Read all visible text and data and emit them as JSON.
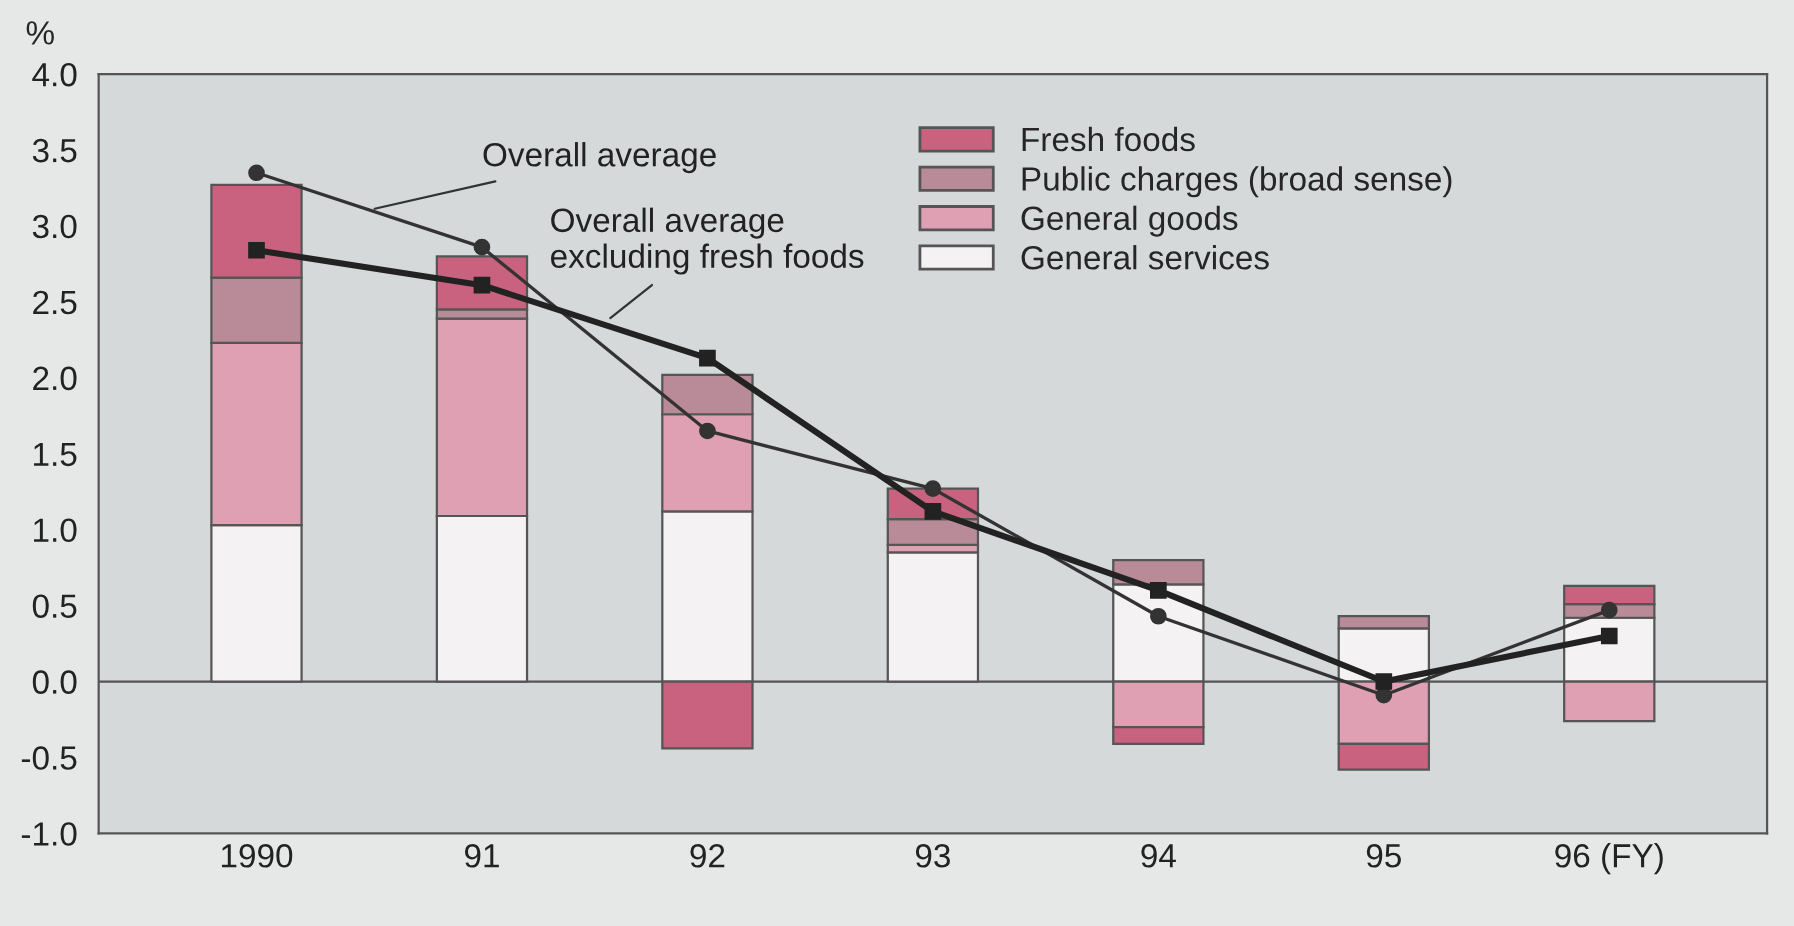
{
  "chart_data": {
    "type": "bar",
    "stacked": true,
    "ylabel": "%",
    "categories": [
      "1990",
      "91",
      "92",
      "93",
      "94",
      "95",
      "96 (FY)"
    ],
    "series": [
      {
        "name": "General services",
        "color": "#f4f2f2",
        "values": [
          1.03,
          1.09,
          1.12,
          0.85,
          0.64,
          0.35,
          0.42
        ]
      },
      {
        "name": "General goods",
        "color": "#dfa0b4",
        "values": [
          1.2,
          1.3,
          0.64,
          0.05,
          -0.3,
          -0.41,
          -0.26
        ]
      },
      {
        "name": "Public charges (broad sense)",
        "color": "#b98a98",
        "values": [
          0.43,
          0.06,
          0.26,
          0.17,
          0.16,
          0.08,
          0.09
        ]
      },
      {
        "name": "Fresh foods",
        "color": "#c8627f",
        "values": [
          0.61,
          0.35,
          -0.44,
          0.2,
          -0.11,
          -0.17,
          0.12
        ]
      },
      {
        "name": "Overall average",
        "type": "line",
        "color": "#333333",
        "marker": "circle",
        "values": [
          3.35,
          2.86,
          1.65,
          1.27,
          0.43,
          -0.09,
          0.47
        ]
      },
      {
        "name": "Overall average\nexcluding fresh foods",
        "type": "line",
        "color": "#222222",
        "marker": "square",
        "values": [
          2.84,
          2.61,
          2.13,
          1.12,
          0.6,
          0.0,
          0.3
        ]
      }
    ],
    "ylim": [
      -1,
      4
    ],
    "yticks": [
      {
        "value": -1,
        "label": "-1.0"
      },
      {
        "value": -0.5,
        "label": "-0.5"
      },
      {
        "value": 0,
        "label": "0.0"
      },
      {
        "value": 0.5,
        "label": "0.5"
      },
      {
        "value": 1,
        "label": "1.0"
      },
      {
        "value": 1.5,
        "label": "1.5"
      },
      {
        "value": 2,
        "label": "2.0"
      },
      {
        "value": 2.5,
        "label": "2.5"
      },
      {
        "value": 3,
        "label": "3.0"
      },
      {
        "value": 3.5,
        "label": "3.5"
      },
      {
        "value": 4,
        "label": "4.0"
      }
    ],
    "legend": "top right"
  }
}
